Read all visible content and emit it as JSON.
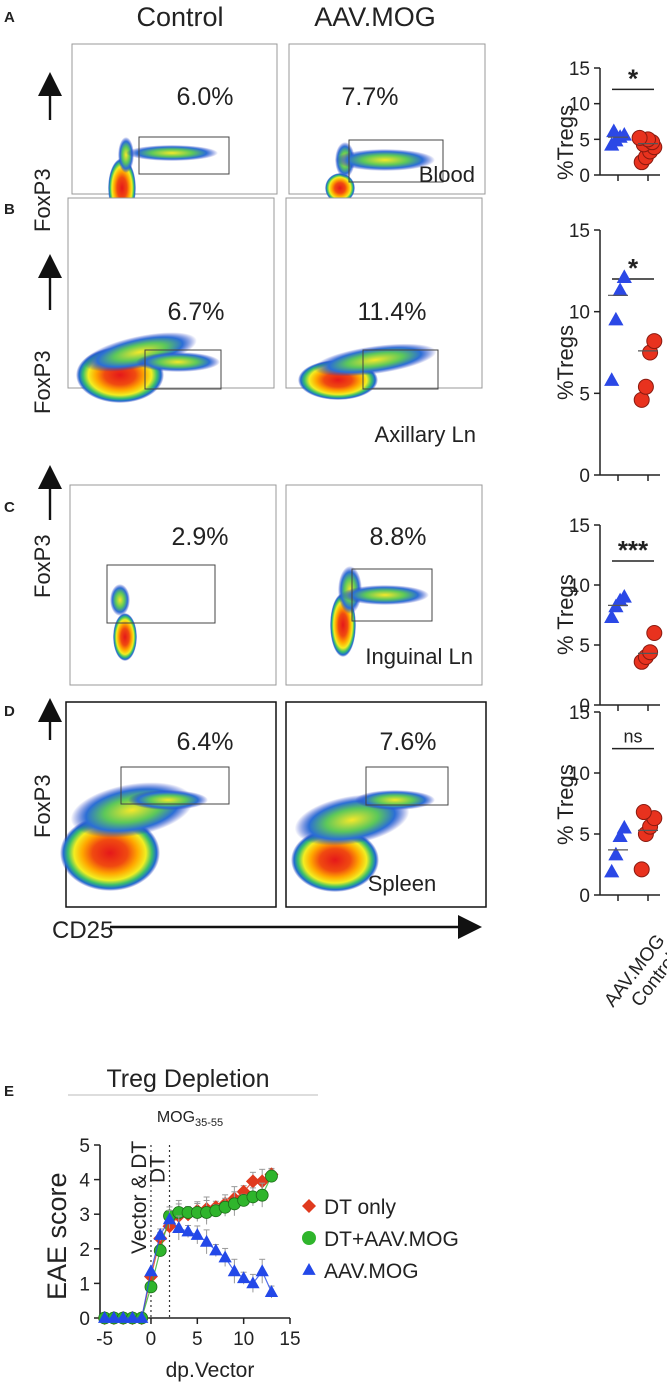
{
  "panel_labels": [
    "A",
    "B",
    "C",
    "D",
    "E"
  ],
  "flow": {
    "column_headers": [
      "Control",
      "AAV.MOG"
    ],
    "y_axis_label": "FoxP3",
    "x_axis_label": "CD25",
    "rows": [
      {
        "label": "A",
        "tissue": "Blood",
        "control_pct": "6.0%",
        "aav_pct": "7.7%"
      },
      {
        "label": "B",
        "tissue": "Axillary Ln",
        "control_pct": "6.7%",
        "aav_pct": "11.4%"
      },
      {
        "label": "C",
        "tissue": "Inguinal Ln",
        "control_pct": "2.9%",
        "aav_pct": "8.8%"
      },
      {
        "label": "D",
        "tissue": "Spleen",
        "control_pct": "6.4%",
        "aav_pct": "7.6%"
      }
    ]
  },
  "chart_data": [
    {
      "type": "scatter",
      "panel": "A",
      "ylabel": "%Tregs",
      "ylim": [
        0,
        15
      ],
      "yticks": [
        "0",
        "5",
        "10",
        "15"
      ],
      "categories": [
        "AAV.MOG",
        "Control"
      ],
      "significance": "*",
      "series": [
        {
          "name": "AAV.MOG",
          "values": [
            4.2,
            4.8,
            5.3,
            5.6,
            6.1
          ],
          "mean": 5.3,
          "color": "#2b48e6"
        },
        {
          "name": "Control",
          "values": [
            1.8,
            2.5,
            3.3,
            3.9,
            4.3,
            4.6,
            5.0,
            5.2
          ],
          "mean": 4.4,
          "color": "#e8321e"
        }
      ]
    },
    {
      "type": "scatter",
      "panel": "B",
      "ylabel": "%Tregs",
      "ylim": [
        0,
        15
      ],
      "yticks": [
        "0",
        "5",
        "10",
        "15"
      ],
      "categories": [
        "AAV.MOG",
        "Control"
      ],
      "significance": "*",
      "series": [
        {
          "name": "AAV.MOG",
          "values": [
            5.8,
            9.5,
            11.3,
            12.1
          ],
          "mean": 11.0,
          "color": "#2b48e6"
        },
        {
          "name": "Control",
          "values": [
            4.6,
            5.4,
            7.5,
            8.2
          ],
          "mean": 7.6,
          "color": "#e8321e"
        }
      ]
    },
    {
      "type": "scatter",
      "panel": "C",
      "ylabel": "% Tregs",
      "ylim": [
        0,
        15
      ],
      "yticks": [
        "0",
        "5",
        "10",
        "15"
      ],
      "categories": [
        "AAV.MOG",
        "Control"
      ],
      "significance": "***",
      "series": [
        {
          "name": "AAV.MOG",
          "values": [
            7.3,
            8.2,
            8.7,
            9.0
          ],
          "mean": 8.3,
          "color": "#2b48e6"
        },
        {
          "name": "Control",
          "values": [
            3.6,
            4.0,
            4.4,
            6.0
          ],
          "mean": 4.3,
          "color": "#e8321e"
        }
      ]
    },
    {
      "type": "scatter",
      "panel": "D",
      "ylabel": "% Tregs",
      "ylim": [
        0,
        15
      ],
      "yticks": [
        "0",
        "5",
        "10",
        "15"
      ],
      "categories": [
        "AAV.MOG",
        "Control"
      ],
      "significance": "ns",
      "series": [
        {
          "name": "AAV.MOG",
          "values": [
            1.9,
            3.3,
            4.8,
            5.5
          ],
          "mean": 3.7,
          "color": "#2b48e6"
        },
        {
          "name": "Control",
          "values": [
            2.1,
            5.0,
            5.6,
            6.3,
            6.8
          ],
          "mean": 5.3,
          "color": "#e8321e"
        }
      ]
    },
    {
      "type": "line",
      "panel": "E",
      "title": "Treg Depletion",
      "subtitle": "MOG35-55",
      "subtitle_main": "MOG",
      "subtitle_sub": "35-55",
      "xlabel": "dp.Vector",
      "ylabel": "EAE score",
      "xlim": [
        -5.5,
        15
      ],
      "ylim": [
        0,
        5
      ],
      "xticks": [
        -5,
        0,
        5,
        10,
        15
      ],
      "yticks": [
        0,
        1,
        2,
        3,
        4,
        5
      ],
      "vlines": [
        {
          "x": 0,
          "label": "Vector & DT"
        },
        {
          "x": 2,
          "label": "DT"
        }
      ],
      "x": [
        -5,
        -4,
        -3,
        -2,
        -1,
        0,
        1,
        2,
        3,
        4,
        5,
        6,
        7,
        8,
        9,
        10,
        11,
        12,
        13
      ],
      "series": [
        {
          "name": "DT only",
          "marker": "diamond",
          "color": "#e03a1e",
          "values": [
            0,
            0,
            0,
            0,
            0,
            1.2,
            2.3,
            2.65,
            2.95,
            3.0,
            3.1,
            3.15,
            3.2,
            3.3,
            3.45,
            3.65,
            3.95,
            3.95,
            4.15
          ]
        },
        {
          "name": "DT+AAV.MOG",
          "marker": "circle",
          "color": "#2fb52c",
          "values": [
            0,
            0,
            0,
            0,
            0,
            0.9,
            1.95,
            2.95,
            3.05,
            3.05,
            3.05,
            3.05,
            3.1,
            3.2,
            3.3,
            3.4,
            3.5,
            3.55,
            4.1
          ]
        },
        {
          "name": "AAV.MOG",
          "marker": "triangle",
          "color": "#2348e8",
          "values": [
            0,
            0,
            0,
            0,
            0,
            1.35,
            2.4,
            2.85,
            2.6,
            2.5,
            2.4,
            2.2,
            1.95,
            1.75,
            1.35,
            1.15,
            1.0,
            1.35,
            0.75
          ]
        }
      ]
    }
  ]
}
